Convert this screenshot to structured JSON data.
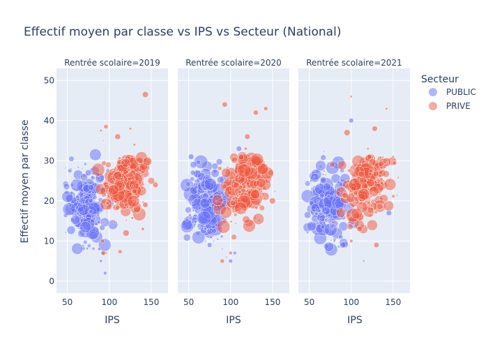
{
  "chart_data": {
    "type": "scatter",
    "title": "Effectif moyen par classe vs IPS vs Secteur (National)",
    "xlabel": "IPS",
    "ylabel": "Effectif moyen par classe",
    "xlim": [
      37,
      170
    ],
    "ylim": [
      -3,
      53
    ],
    "xticks": [
      50,
      100,
      150
    ],
    "yticks": [
      0,
      10,
      20,
      30,
      40,
      50
    ],
    "grid": true,
    "legend": {
      "title": "Secteur",
      "position": "right",
      "entries": [
        {
          "name": "PUBLIC",
          "color": "#636efa"
        },
        {
          "name": "PRIVE",
          "color": "#ef553b"
        }
      ]
    },
    "panels": [
      {
        "title": "Rentrée scolaire=2019",
        "series": [
          {
            "name": "PUBLIC",
            "color": "#636efa",
            "cluster": {
              "x_center": 72,
              "x_spread": 16,
              "y_center": 19,
              "y_spread": 4.5,
              "n": 220
            },
            "points": [
              [
                53,
                27.5
              ],
              [
                54,
                28
              ],
              [
                55,
                22
              ],
              [
                58,
                25
              ],
              [
                62,
                21
              ],
              [
                65,
                19
              ],
              [
                75,
                27
              ],
              [
                80,
                15
              ],
              [
                88,
                8
              ],
              [
                90,
                5
              ],
              [
                92,
                7
              ],
              [
                95,
                2
              ]
            ]
          },
          {
            "name": "PRIVE",
            "color": "#ef553b",
            "cluster": {
              "x_center": 120,
              "x_spread": 18,
              "y_center": 24,
              "y_spread": 4,
              "n": 260
            },
            "points": [
              [
                143,
                46.5
              ],
              [
                90,
                37.5
              ],
              [
                96,
                38.5
              ],
              [
                93,
                35
              ],
              [
                110,
                36
              ],
              [
                125,
                38
              ],
              [
                130,
                34
              ],
              [
                96,
                7
              ],
              [
                93,
                7
              ],
              [
                92,
                10
              ],
              [
                120,
                12
              ],
              [
                140,
                13
              ],
              [
                143,
                19
              ],
              [
                155,
                24
              ]
            ]
          }
        ]
      },
      {
        "title": "Rentrée scolaire=2020",
        "series": [
          {
            "name": "PUBLIC",
            "color": "#636efa",
            "cluster": {
              "x_center": 72,
              "x_spread": 16,
              "y_center": 19,
              "y_spread": 4.5,
              "n": 220
            },
            "points": [
              [
                53,
                31
              ],
              [
                55,
                27
              ],
              [
                58,
                25
              ],
              [
                70,
                13
              ],
              [
                75,
                9
              ],
              [
                80,
                10
              ],
              [
                90,
                8
              ],
              [
                95,
                6
              ],
              [
                100,
                5
              ],
              [
                105,
                7
              ],
              [
                110,
                33
              ]
            ]
          },
          {
            "name": "PRIVE",
            "color": "#ef553b",
            "cluster": {
              "x_center": 120,
              "x_spread": 18,
              "y_center": 24,
              "y_spread": 4,
              "n": 260
            },
            "points": [
              [
                93,
                44
              ],
              [
                142,
                43
              ],
              [
                130,
                42
              ],
              [
                120,
                36
              ],
              [
                118,
                33
              ],
              [
                90,
                5
              ],
              [
                100,
                7
              ],
              [
                150,
                20
              ]
            ]
          }
        ]
      },
      {
        "title": "Rentrée scolaire=2021",
        "series": [
          {
            "name": "PUBLIC",
            "color": "#636efa",
            "cluster": {
              "x_center": 72,
              "x_spread": 16,
              "y_center": 19,
              "y_spread": 4.5,
              "n": 220
            },
            "points": [
              [
                52,
                25
              ],
              [
                53,
                23
              ],
              [
                56,
                26
              ],
              [
                60,
                20
              ],
              [
                75,
                14
              ],
              [
                80,
                10
              ],
              [
                90,
                9
              ],
              [
                100,
                40
              ],
              [
                115,
                5
              ],
              [
                145,
                17
              ]
            ]
          },
          {
            "name": "PRIVE",
            "color": "#ef553b",
            "cluster": {
              "x_center": 120,
              "x_spread": 18,
              "y_center": 24,
              "y_spread": 4,
              "n": 260
            },
            "points": [
              [
                100,
                46
              ],
              [
                142,
                43
              ],
              [
                128,
                38
              ],
              [
                95,
                37
              ],
              [
                120,
                33
              ],
              [
                130,
                9
              ],
              [
                100,
                10
              ],
              [
                110,
                13
              ],
              [
                150,
                31
              ]
            ]
          }
        ]
      }
    ]
  }
}
